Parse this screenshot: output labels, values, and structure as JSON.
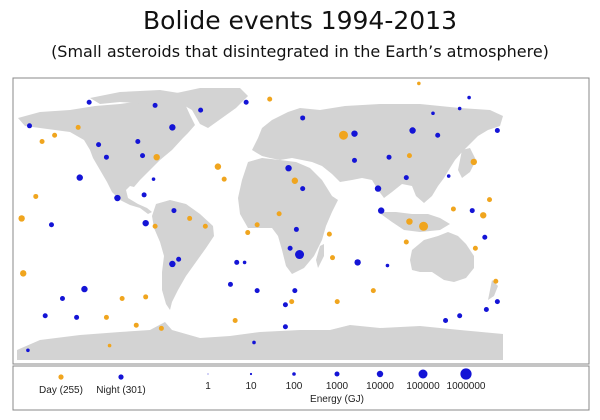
{
  "title": "Bolide events 1994-2013",
  "subtitle": "(Small asteroids that disintegrated in the Earth’s atmosphere)",
  "colors": {
    "day": "#f0a51e",
    "night": "#1414d6",
    "land": "#d3d3d3",
    "ocean": "#ffffff"
  },
  "legend": {
    "day_label": "Day (255)",
    "night_label": "Night (301)",
    "energy_title": "Energy (GJ)",
    "energy_levels": [
      "1",
      "10",
      "100",
      "1000",
      "10000",
      "100000",
      "1000000"
    ]
  },
  "map_data": {
    "projection": "equirectangular",
    "points": [
      [
        50,
        54,
        "day",
        5
      ],
      [
        57,
        55,
        "night",
        4
      ],
      [
        -59,
        59,
        "night",
        4
      ],
      [
        -118,
        27,
        "night",
        4
      ],
      [
        -115,
        -44,
        "night",
        4
      ],
      [
        22,
        -22,
        "night",
        5
      ],
      [
        59,
        -27,
        "night",
        4
      ],
      [
        15,
        33,
        "night",
        4
      ],
      [
        19,
        25,
        "day",
        4
      ],
      [
        -30,
        34,
        "day",
        4
      ],
      [
        -26,
        26,
        "day",
        3
      ],
      [
        72,
        20,
        "night",
        4
      ],
      [
        74,
        6,
        "night",
        4
      ],
      [
        101,
        -4,
        "day",
        5
      ],
      [
        92,
        -1,
        "day",
        4
      ],
      [
        133,
        37,
        "day",
        4
      ],
      [
        139,
        3,
        "day",
        4
      ],
      [
        94,
        57,
        "night",
        4
      ],
      [
        148,
        57,
        "night",
        3
      ],
      [
        -76,
        -2,
        "night",
        4
      ],
      [
        -59,
        -28,
        "night",
        4
      ],
      [
        -55,
        -25,
        "night",
        3
      ],
      [
        -94,
        14,
        "night",
        4
      ],
      [
        -101,
        40,
        "night",
        3
      ],
      [
        -69,
        40,
        "day",
        4
      ],
      [
        -119,
        59,
        "day",
        3
      ],
      [
        -154,
        -34,
        "day",
        4
      ],
      [
        -155,
        1,
        "day",
        4
      ],
      [
        -129,
        -50,
        "night",
        3
      ],
      [
        13,
        -54,
        "night",
        3
      ],
      [
        13,
        -68,
        "night",
        3
      ],
      [
        115,
        -64,
        "night",
        3
      ],
      [
        124,
        -61,
        "night",
        3
      ],
      [
        141,
        -57,
        "night",
        3
      ],
      [
        46,
        -52,
        "day",
        3
      ],
      [
        69,
        -45,
        "day",
        3
      ],
      [
        43,
        -24,
        "day",
        3
      ],
      [
        41,
        -9,
        "day",
        3
      ],
      [
        90,
        -14,
        "day",
        3
      ],
      [
        78,
        -29,
        "night",
        2
      ],
      [
        134,
        -18,
        "day",
        3
      ],
      [
        140,
        -11,
        "night",
        3
      ],
      [
        132,
        6,
        "night",
        3
      ],
      [
        120,
        7,
        "day",
        3
      ],
      [
        3,
        77,
        "day",
        3
      ],
      [
        -12,
        75,
        "night",
        3
      ],
      [
        -41,
        70,
        "night",
        3
      ],
      [
        24,
        20,
        "night",
        3
      ],
      [
        9,
        4,
        "day",
        3
      ],
      [
        20,
        -6,
        "night",
        3
      ],
      [
        16,
        -18,
        "night",
        3
      ],
      [
        -18,
        -27,
        "night",
        3
      ],
      [
        -13,
        -27,
        "night",
        2
      ],
      [
        -22,
        -41,
        "night",
        3
      ],
      [
        -5,
        -45,
        "night",
        3
      ],
      [
        19,
        -45,
        "night",
        3
      ],
      [
        17,
        -52,
        "day",
        3
      ],
      [
        -19,
        -64,
        "day",
        3
      ],
      [
        -7,
        -78,
        "night",
        2
      ],
      [
        -66,
        -69,
        "day",
        3
      ],
      [
        -82,
        -67,
        "day",
        3
      ],
      [
        -99,
        -80,
        "day",
        2
      ],
      [
        -151,
        -83,
        "night",
        2
      ],
      [
        -140,
        -61,
        "night",
        3
      ],
      [
        -120,
        -62,
        "night",
        3
      ],
      [
        -101,
        -62,
        "day",
        3
      ],
      [
        -91,
        -50,
        "day",
        3
      ],
      [
        -76,
        -49,
        "day",
        3
      ],
      [
        -136,
        -3,
        "night",
        3
      ],
      [
        -146,
        15,
        "day",
        3
      ],
      [
        -150,
        60,
        "night",
        3
      ],
      [
        -142,
        50,
        "day",
        3
      ],
      [
        -134,
        54,
        "day",
        3
      ],
      [
        -106,
        48,
        "night",
        3
      ],
      [
        -81,
        50,
        "night",
        3
      ],
      [
        -78,
        41,
        "night",
        3
      ],
      [
        -77,
        16,
        "night",
        3
      ],
      [
        -71,
        26,
        "night",
        2
      ],
      [
        -58,
        6,
        "night",
        3
      ],
      [
        -48,
        1,
        "day",
        3
      ],
      [
        -38,
        -4,
        "day",
        3
      ],
      [
        -70,
        -4,
        "day",
        3
      ],
      [
        -5,
        -3,
        "day",
        3
      ],
      [
        -11,
        -8,
        "day",
        3
      ],
      [
        57,
        38,
        "night",
        3
      ],
      [
        79,
        40,
        "night",
        3
      ],
      [
        90,
        27,
        "night",
        3
      ],
      [
        92,
        41,
        "day",
        3
      ],
      [
        110,
        54,
        "night",
        3
      ],
      [
        117,
        28,
        "night",
        2
      ],
      [
        143,
        13,
        "day",
        3
      ],
      [
        148,
        -52,
        "night",
        3
      ],
      [
        147,
        -39,
        "day",
        3
      ],
      [
        98,
        87,
        "day",
        2
      ],
      [
        130,
        78,
        "night",
        2
      ],
      [
        124,
        71,
        "night",
        2
      ],
      [
        107,
        68,
        "night",
        2
      ],
      [
        -112,
        75,
        "night",
        3
      ],
      [
        -70,
        73,
        "night",
        3
      ],
      [
        24,
        65,
        "night",
        3
      ]
    ]
  }
}
